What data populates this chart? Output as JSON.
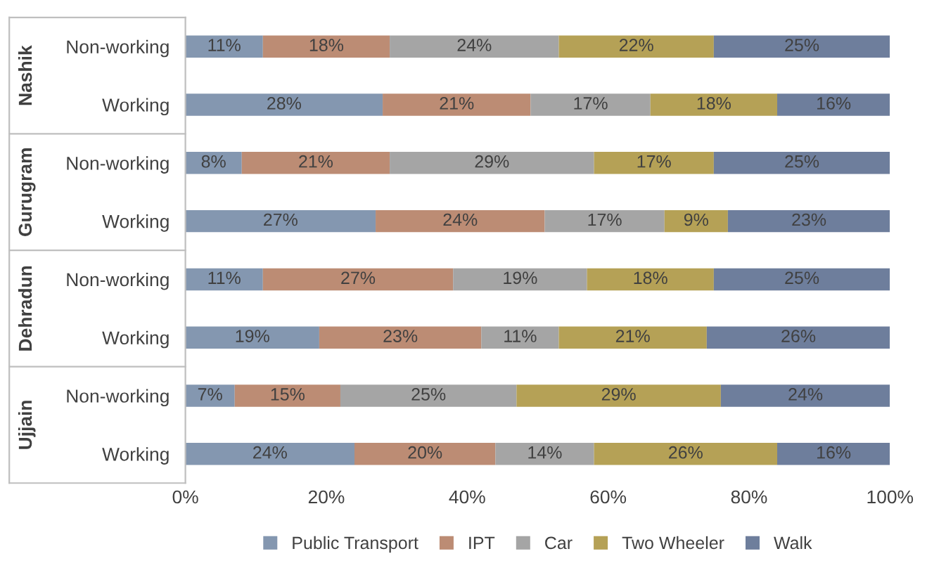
{
  "chart_data": {
    "type": "bar",
    "orientation": "horizontal",
    "stacked": true,
    "categories": [
      "Non-working",
      "Working",
      "Non-working",
      "Working",
      "Non-working",
      "Working",
      "Non-working",
      "Working"
    ],
    "annotations": [
      "Nashik",
      "Gurugram",
      "Dehradun",
      "Ujjain"
    ],
    "series": [
      {
        "name": "Public Transport",
        "color": "#8497b0",
        "values": [
          11,
          28,
          8,
          27,
          11,
          19,
          7,
          24
        ],
        "value_labels": [
          "11%",
          "28%",
          "8%",
          "27%",
          "11%",
          "19%",
          "7%",
          "24%"
        ]
      },
      {
        "name": "IPT",
        "color": "#bc8c74",
        "values": [
          18,
          21,
          21,
          24,
          27,
          23,
          15,
          20
        ],
        "value_labels": [
          "18%",
          "21%",
          "21%",
          "24%",
          "27%",
          "23%",
          "15%",
          "20%"
        ]
      },
      {
        "name": "Car",
        "color": "#a5a5a5",
        "values": [
          24,
          17,
          29,
          17,
          19,
          11,
          25,
          14
        ],
        "value_labels": [
          "24%",
          "17%",
          "29%",
          "17%",
          "19%",
          "11%",
          "25%",
          "14%"
        ]
      },
      {
        "name": "Two Wheeler",
        "color": "#b5a156",
        "values": [
          22,
          18,
          17,
          9,
          18,
          21,
          29,
          26
        ],
        "value_labels": [
          "22%",
          "18%",
          "17%",
          "9%",
          "18%",
          "21%",
          "29%",
          "26%"
        ]
      },
      {
        "name": "Walk",
        "color": "#6e7e9c",
        "values": [
          25,
          16,
          25,
          23,
          25,
          26,
          24,
          16
        ],
        "value_labels": [
          "25%",
          "16%",
          "25%",
          "23%",
          "25%",
          "26%",
          "24%",
          "16%"
        ]
      }
    ],
    "xlim": [
      0,
      100
    ],
    "xticks": [
      {
        "value": 0,
        "label": "0%"
      },
      {
        "value": 20,
        "label": "20%"
      },
      {
        "value": 40,
        "label": "40%"
      },
      {
        "value": 60,
        "label": "60%"
      },
      {
        "value": 80,
        "label": "80%"
      },
      {
        "value": 100,
        "label": "100%"
      }
    ],
    "grid": false,
    "legend": "bottom"
  }
}
